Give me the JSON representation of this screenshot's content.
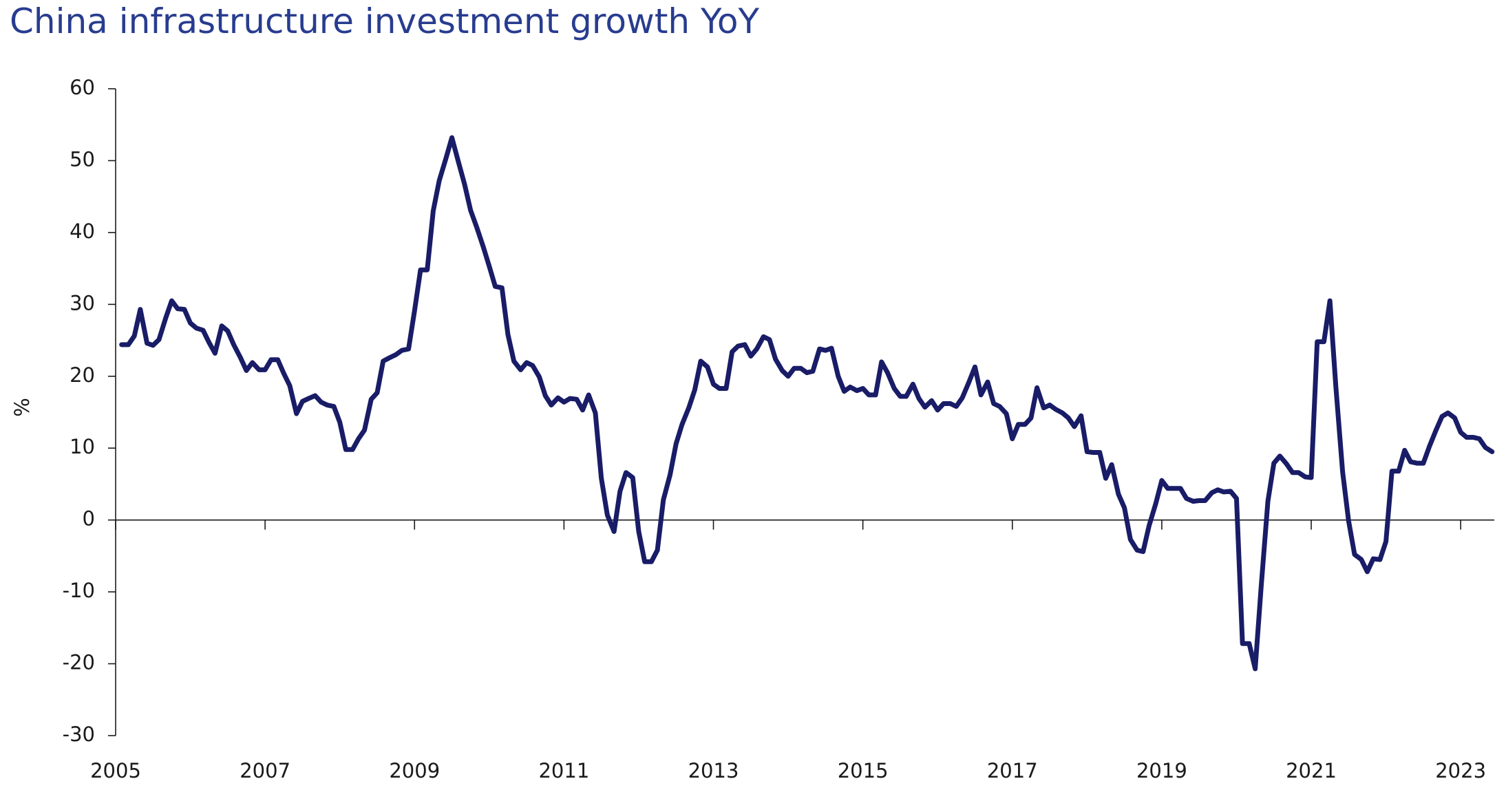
{
  "chart_data": {
    "type": "line",
    "title": "China infrastructure investment growth YoY",
    "y_label": "%",
    "color": "#191c66",
    "xlim": [
      2005,
      2023.45
    ],
    "xticks": [
      2005,
      2007,
      2009,
      2011,
      2013,
      2015,
      2017,
      2019,
      2021,
      2023
    ],
    "ylim": [
      -30,
      60
    ],
    "yticks": [
      -30,
      -20,
      -10,
      0,
      10,
      20,
      30,
      40,
      50,
      60
    ],
    "x": [
      2005.08,
      2005.17,
      2005.25,
      2005.33,
      2005.42,
      2005.5,
      2005.58,
      2005.67,
      2005.75,
      2005.83,
      2005.92,
      2006,
      2006.08,
      2006.17,
      2006.25,
      2006.33,
      2006.42,
      2006.5,
      2006.58,
      2006.67,
      2006.75,
      2006.83,
      2006.92,
      2007,
      2007.08,
      2007.17,
      2007.25,
      2007.33,
      2007.42,
      2007.5,
      2007.58,
      2007.67,
      2007.75,
      2007.83,
      2007.92,
      2008,
      2008.08,
      2008.17,
      2008.25,
      2008.33,
      2008.42,
      2008.5,
      2008.58,
      2008.67,
      2008.75,
      2008.83,
      2008.92,
      2009,
      2009.08,
      2009.17,
      2009.25,
      2009.33,
      2009.42,
      2009.5,
      2009.58,
      2009.67,
      2009.75,
      2009.83,
      2009.92,
      2010,
      2010.08,
      2010.17,
      2010.25,
      2010.33,
      2010.42,
      2010.5,
      2010.58,
      2010.67,
      2010.75,
      2010.83,
      2010.92,
      2011,
      2011.08,
      2011.17,
      2011.25,
      2011.33,
      2011.42,
      2011.5,
      2011.58,
      2011.67,
      2011.75,
      2011.83,
      2011.92,
      2012,
      2012.08,
      2012.17,
      2012.25,
      2012.33,
      2012.42,
      2012.5,
      2012.58,
      2012.67,
      2012.75,
      2012.83,
      2012.92,
      2013,
      2013.08,
      2013.17,
      2013.25,
      2013.33,
      2013.42,
      2013.5,
      2013.58,
      2013.67,
      2013.75,
      2013.83,
      2013.92,
      2014,
      2014.08,
      2014.17,
      2014.25,
      2014.33,
      2014.42,
      2014.5,
      2014.58,
      2014.67,
      2014.75,
      2014.83,
      2014.92,
      2015,
      2015.08,
      2015.17,
      2015.25,
      2015.33,
      2015.42,
      2015.5,
      2015.58,
      2015.67,
      2015.75,
      2015.83,
      2015.92,
      2016,
      2016.08,
      2016.17,
      2016.25,
      2016.33,
      2016.42,
      2016.5,
      2016.58,
      2016.67,
      2016.75,
      2016.83,
      2016.92,
      2017,
      2017.08,
      2017.17,
      2017.25,
      2017.33,
      2017.42,
      2017.5,
      2017.58,
      2017.67,
      2017.75,
      2017.83,
      2017.92,
      2018,
      2018.08,
      2018.17,
      2018.25,
      2018.33,
      2018.42,
      2018.5,
      2018.58,
      2018.67,
      2018.75,
      2018.83,
      2018.92,
      2019,
      2019.08,
      2019.17,
      2019.25,
      2019.33,
      2019.42,
      2019.5,
      2019.58,
      2019.67,
      2019.75,
      2019.83,
      2019.92,
      2020,
      2020.08,
      2020.17,
      2020.25,
      2020.33,
      2020.42,
      2020.5,
      2020.58,
      2020.67,
      2020.75,
      2020.83,
      2020.92,
      2021,
      2021.08,
      2021.17,
      2021.25,
      2021.33,
      2021.42,
      2021.5,
      2021.58,
      2021.67,
      2021.75,
      2021.83,
      2021.92,
      2022,
      2022.08,
      2022.17,
      2022.25,
      2022.33,
      2022.42,
      2022.5,
      2022.58,
      2022.67,
      2022.75,
      2022.83,
      2022.92,
      2023,
      2023.08,
      2023.17,
      2023.25,
      2023.33,
      2023.42
    ],
    "values": [
      24.4,
      24.4,
      25.6,
      29.3,
      24.6,
      24.3,
      25.1,
      28.1,
      30.5,
      29.4,
      29.3,
      27.4,
      26.7,
      26.4,
      24.7,
      23.2,
      27.0,
      26.3,
      24.4,
      22.6,
      20.8,
      21.9,
      20.9,
      20.9,
      22.3,
      22.3,
      20.4,
      18.7,
      14.8,
      16.5,
      16.9,
      17.3,
      16.4,
      16.0,
      15.8,
      13.6,
      9.8,
      9.8,
      11.3,
      12.5,
      16.8,
      17.7,
      22.1,
      22.6,
      23.0,
      23.6,
      23.8,
      29.1,
      34.8,
      34.8,
      43.0,
      47.2,
      50.3,
      53.2,
      50.1,
      46.7,
      43.1,
      40.8,
      38.0,
      35.3,
      32.5,
      32.3,
      25.8,
      22.1,
      20.9,
      21.9,
      21.5,
      19.9,
      17.3,
      16.0,
      17.0,
      16.4,
      16.9,
      16.8,
      15.3,
      17.4,
      14.9,
      5.8,
      0.7,
      -1.6,
      4.0,
      6.6,
      5.9,
      -1.6,
      -5.8,
      -5.8,
      -4.2,
      2.8,
      6.3,
      10.6,
      13.3,
      15.6,
      18.1,
      22.1,
      21.3,
      18.9,
      18.3,
      18.3,
      23.4,
      24.2,
      24.4,
      22.8,
      23.8,
      25.5,
      25.1,
      22.4,
      20.8,
      20.0,
      21.1,
      21.1,
      20.5,
      20.7,
      23.8,
      23.6,
      23.9,
      20.0,
      17.9,
      18.5,
      18.0,
      18.3,
      17.4,
      17.4,
      22.0,
      20.5,
      18.3,
      17.2,
      17.2,
      18.9,
      16.9,
      15.7,
      16.6,
      15.3,
      16.2,
      16.2,
      15.8,
      17.0,
      19.2,
      21.3,
      17.4,
      19.2,
      16.2,
      15.8,
      14.8,
      11.3,
      13.3,
      13.3,
      14.2,
      18.4,
      15.6,
      16.0,
      15.4,
      14.9,
      14.2,
      13.0,
      14.5,
      9.5,
      9.4,
      9.4,
      5.8,
      7.7,
      3.6,
      1.7,
      -2.7,
      -4.2,
      -4.4,
      -0.8,
      2.3,
      5.5,
      4.4,
      4.4,
      4.4,
      3.0,
      2.6,
      2.7,
      2.7,
      3.8,
      4.2,
      3.9,
      4.0,
      3.0,
      -17.2,
      -17.2,
      -20.7,
      -9.3,
      2.6,
      7.9,
      8.9,
      7.8,
      6.6,
      6.6,
      6.0,
      5.9,
      24.8,
      24.8,
      30.5,
      18.5,
      6.7,
      -0.1,
      -4.8,
      -5.5,
      -7.2,
      -5.4,
      -5.5,
      -3.0,
      6.8,
      6.8,
      9.7,
      8.1,
      7.9,
      7.9,
      10.2,
      12.5,
      14.4,
      14.9,
      14.2,
      12.2,
      11.5,
      11.5,
      11.3,
      10.1,
      9.5
    ]
  }
}
